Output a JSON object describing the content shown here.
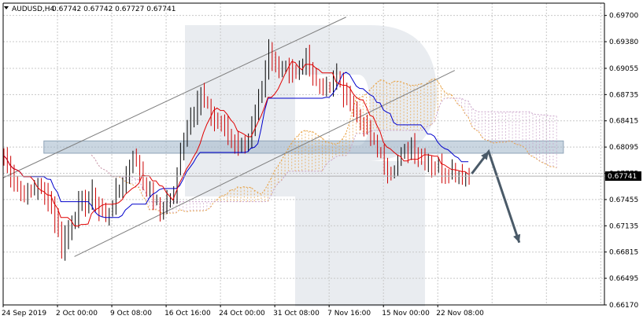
{
  "header": {
    "symbol_text": "AUDUSD,H4",
    "ohlc_text": "0.67742 0.67742 0.67727 0.67741"
  },
  "colors": {
    "background": "#ffffff",
    "grid": "#c8c8c8",
    "bull_candle": "#000000",
    "bear_candle": "#cc0000",
    "tenkan": "#e00000",
    "kijun": "#0000cc",
    "cloud_a": "#e8a040",
    "cloud_b": "#c8a0c8",
    "channel": "#7f7f7f",
    "zone": "#9fb4c8",
    "arrow": "#4a5a68",
    "price_label_bg": "#000000",
    "price_label_text": "#ffffff",
    "watermark": "#dfe4ea"
  },
  "chart_data": {
    "type": "candlestick",
    "title": "AUDUSD,H4",
    "last_price": 0.67741,
    "last_price_label": "0.67741",
    "ylim": [
      0.6617,
      0.6985
    ],
    "y_ticks": [
      {
        "value": 0.697,
        "label": "0.69700"
      },
      {
        "value": 0.6938,
        "label": "0.69380"
      },
      {
        "value": 0.69055,
        "label": "0.69055"
      },
      {
        "value": 0.68735,
        "label": "0.68735"
      },
      {
        "value": 0.68415,
        "label": "0.68415"
      },
      {
        "value": 0.68095,
        "label": "0.68095"
      },
      {
        "value": 0.67775,
        "label": "0.67775"
      },
      {
        "value": 0.67455,
        "label": "0.67455"
      },
      {
        "value": 0.67135,
        "label": "0.67135"
      },
      {
        "value": 0.66815,
        "label": "0.66815"
      },
      {
        "value": 0.66495,
        "label": "0.66495"
      },
      {
        "value": 0.6617,
        "label": "0.66170"
      }
    ],
    "x_range": [
      0,
      140
    ],
    "x_ticks": [
      {
        "index": 0,
        "label": "24 Sep 2019"
      },
      {
        "index": 16,
        "label": "2 Oct 00:00"
      },
      {
        "index": 32,
        "label": "9 Oct 08:00"
      },
      {
        "index": 48,
        "label": "16 Oct 16:00"
      },
      {
        "index": 64,
        "label": "24 Oct 00:00"
      },
      {
        "index": 80,
        "label": "31 Oct 08:00"
      },
      {
        "index": 96,
        "label": "7 Nov 16:00"
      },
      {
        "index": 112,
        "label": "15 Nov 00:00"
      },
      {
        "index": 128,
        "label": "22 Nov 08:00"
      }
    ],
    "close_path": [
      [
        0,
        0.68
      ],
      [
        3,
        0.677
      ],
      [
        6,
        0.6752
      ],
      [
        10,
        0.6764
      ],
      [
        14,
        0.674
      ],
      [
        17,
        0.669
      ],
      [
        19,
        0.671
      ],
      [
        22,
        0.6735
      ],
      [
        26,
        0.675
      ],
      [
        30,
        0.6722
      ],
      [
        34,
        0.676
      ],
      [
        38,
        0.6798
      ],
      [
        42,
        0.676
      ],
      [
        46,
        0.6732
      ],
      [
        50,
        0.675
      ],
      [
        52,
        0.6805
      ],
      [
        55,
        0.685
      ],
      [
        58,
        0.6872
      ],
      [
        61,
        0.685
      ],
      [
        64,
        0.6835
      ],
      [
        67,
        0.682
      ],
      [
        70,
        0.681
      ],
      [
        73,
        0.683
      ],
      [
        76,
        0.688
      ],
      [
        78,
        0.6925
      ],
      [
        80,
        0.6905
      ],
      [
        83,
        0.6912
      ],
      [
        86,
        0.6895
      ],
      [
        89,
        0.6918
      ],
      [
        92,
        0.6888
      ],
      [
        95,
        0.6878
      ],
      [
        98,
        0.6895
      ],
      [
        101,
        0.687
      ],
      [
        104,
        0.685
      ],
      [
        107,
        0.6828
      ],
      [
        110,
        0.6808
      ],
      [
        112,
        0.679
      ],
      [
        114,
        0.6782
      ],
      [
        117,
        0.68
      ],
      [
        120,
        0.6812
      ],
      [
        123,
        0.6795
      ],
      [
        126,
        0.679
      ],
      [
        129,
        0.6782
      ],
      [
        132,
        0.678
      ],
      [
        135,
        0.6776
      ],
      [
        137,
        0.67741
      ]
    ],
    "channel_lines": [
      {
        "name": "channel-upper",
        "from": [
          0,
          0.6772
        ],
        "to": [
          101,
          0.6968
        ]
      },
      {
        "name": "channel-lower",
        "from": [
          21,
          0.6676
        ],
        "to": [
          133,
          0.6903
        ]
      }
    ],
    "zone": {
      "from_index": 12,
      "to_index": 165,
      "y_top": 0.6817,
      "y_bottom": 0.6802
    },
    "forecast_path": [
      [
        138,
        0.6777
      ],
      [
        143,
        0.6804
      ],
      [
        152,
        0.6693
      ]
    ]
  }
}
